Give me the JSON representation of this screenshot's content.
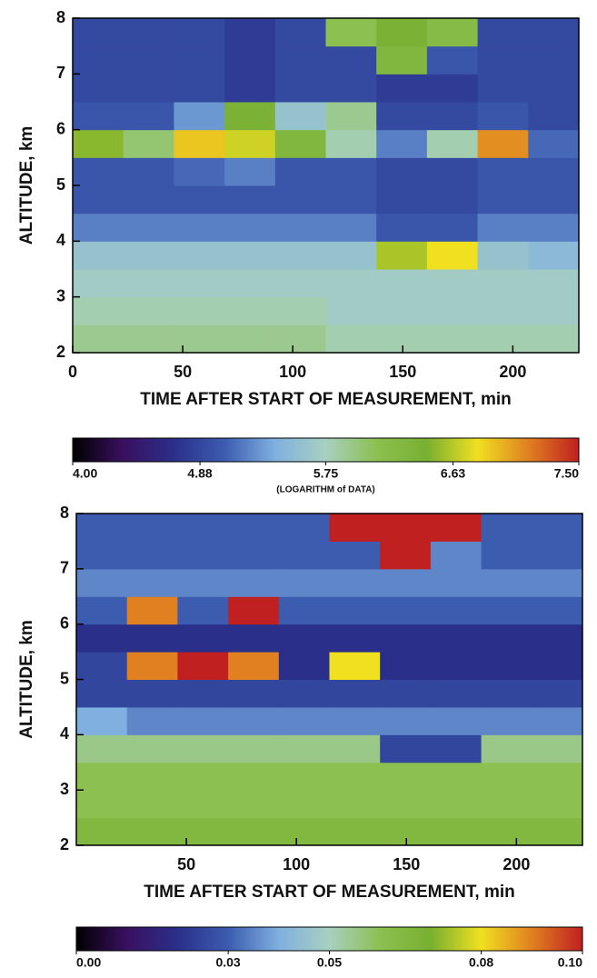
{
  "chart_data": [
    {
      "type": "heatmap",
      "x_label": "TIME AFTER START OF MEASUREMENT, min",
      "y_label": "ALTITUDE, km",
      "colorbar_label": "(LOGARITHM of DATA)",
      "x": [
        0,
        23,
        46,
        69,
        92,
        115,
        138,
        161,
        184,
        207,
        230
      ],
      "y": [
        2,
        2.5,
        3,
        3.5,
        4,
        4.5,
        5,
        5.5,
        6,
        6.5,
        7,
        7.5,
        8
      ],
      "z": [
        [
          5.9,
          5.9,
          5.9,
          5.9,
          5.9,
          5.8,
          5.8,
          5.8,
          5.8,
          5.8
        ],
        [
          5.8,
          5.8,
          5.8,
          5.8,
          5.8,
          5.7,
          5.7,
          5.7,
          5.7,
          5.7
        ],
        [
          5.7,
          5.7,
          5.7,
          5.7,
          5.7,
          5.7,
          5.7,
          5.7,
          5.7,
          5.7
        ],
        [
          5.6,
          5.6,
          5.6,
          5.6,
          5.6,
          5.6,
          6.6,
          6.8,
          5.6,
          5.5
        ],
        [
          5.2,
          5.2,
          5.2,
          5.2,
          5.2,
          5.2,
          5.0,
          5.0,
          5.2,
          5.2
        ],
        [
          5.0,
          5.0,
          5.0,
          5.0,
          5.0,
          5.0,
          4.9,
          4.9,
          5.0,
          5.0
        ],
        [
          5.0,
          5.0,
          5.1,
          5.2,
          5.0,
          5.0,
          4.9,
          4.9,
          5.0,
          5.0
        ],
        [
          6.5,
          6.0,
          6.9,
          6.7,
          6.3,
          5.8,
          5.2,
          5.8,
          7.1,
          5.1
        ],
        [
          5.0,
          5.0,
          5.3,
          6.4,
          5.6,
          5.9,
          4.9,
          4.9,
          5.0,
          4.9
        ],
        [
          4.9,
          4.9,
          4.9,
          4.8,
          4.9,
          4.9,
          4.8,
          4.8,
          4.9,
          4.9
        ],
        [
          4.9,
          4.9,
          4.9,
          4.8,
          4.9,
          4.9,
          6.3,
          5.0,
          4.9,
          4.9
        ],
        [
          4.9,
          4.9,
          4.9,
          4.8,
          4.9,
          6.1,
          6.4,
          6.2,
          4.9,
          4.9
        ]
      ],
      "xlim": [
        0,
        230
      ],
      "xticks": [
        0,
        50,
        100,
        150,
        200
      ],
      "ylim": [
        2,
        8
      ],
      "yticks": [
        2,
        3,
        4,
        5,
        6,
        7,
        8
      ],
      "clim": [
        4,
        7.5
      ],
      "cticks": [
        {
          "value": 4,
          "label": "4.00"
        },
        4.88,
        5.75,
        6.63,
        {
          "value": 7.5,
          "label": "7.50"
        }
      ],
      "colormap": [
        "#000000",
        "#3a1060",
        "#2a2f8a",
        "#3c5cb0",
        "#7fb0e0",
        "#a8d0c0",
        "#8cc050",
        "#78b030",
        "#f0e020",
        "#e08020",
        "#c02020"
      ]
    },
    {
      "type": "heatmap",
      "x_label": "TIME AFTER START OF MEASUREMENT, min",
      "y_label": "ALTITUDE, km",
      "x": [
        0,
        23,
        46,
        69,
        92,
        115,
        138,
        161,
        184,
        207,
        230
      ],
      "y": [
        2,
        2.5,
        3,
        3.5,
        4,
        4.5,
        5,
        5.5,
        6,
        6.5,
        7,
        7.5,
        8
      ],
      "z": [
        [
          0.065,
          0.065,
          0.065,
          0.065,
          0.065,
          0.065,
          0.065,
          0.065,
          0.065,
          0.065
        ],
        [
          0.06,
          0.06,
          0.06,
          0.06,
          0.06,
          0.06,
          0.06,
          0.06,
          0.06,
          0.06
        ],
        [
          0.06,
          0.06,
          0.06,
          0.06,
          0.06,
          0.06,
          0.06,
          0.06,
          0.06,
          0.06
        ],
        [
          0.055,
          0.055,
          0.055,
          0.055,
          0.055,
          0.055,
          0.025,
          0.025,
          0.055,
          0.055
        ],
        [
          0.04,
          0.035,
          0.035,
          0.035,
          0.035,
          0.035,
          0.035,
          0.035,
          0.035,
          0.035
        ],
        [
          0.025,
          0.025,
          0.025,
          0.025,
          0.025,
          0.025,
          0.025,
          0.025,
          0.025,
          0.025
        ],
        [
          0.025,
          0.09,
          0.1,
          0.09,
          0.02,
          0.08,
          0.02,
          0.02,
          0.02,
          0.02
        ],
        [
          0.02,
          0.02,
          0.02,
          0.02,
          0.02,
          0.02,
          0.02,
          0.02,
          0.02,
          0.02
        ],
        [
          0.03,
          0.09,
          0.03,
          0.1,
          0.03,
          0.03,
          0.03,
          0.03,
          0.03,
          0.03
        ],
        [
          0.035,
          0.035,
          0.035,
          0.035,
          0.035,
          0.035,
          0.035,
          0.035,
          0.035,
          0.035
        ],
        [
          0.03,
          0.03,
          0.03,
          0.03,
          0.03,
          0.03,
          0.1,
          0.035,
          0.03,
          0.03
        ],
        [
          0.03,
          0.03,
          0.03,
          0.03,
          0.03,
          0.1,
          0.1,
          0.1,
          0.03,
          0.03
        ]
      ],
      "xlim": [
        0,
        230
      ],
      "xticks": [
        50,
        100,
        150,
        200
      ],
      "ylim": [
        2,
        8
      ],
      "yticks": [
        2,
        3,
        4,
        5,
        6,
        7,
        8
      ],
      "clim": [
        0,
        0.1
      ],
      "cticks": [
        {
          "value": 0,
          "label": "0.00"
        },
        0.03,
        0.05,
        0.08,
        {
          "value": 0.1,
          "label": "0.10"
        }
      ],
      "colormap": [
        "#000000",
        "#3a1060",
        "#2a2f8a",
        "#3c5cb0",
        "#7fb0e0",
        "#a8d0c0",
        "#8cc050",
        "#78b030",
        "#f0e020",
        "#e08020",
        "#c02020"
      ]
    }
  ]
}
